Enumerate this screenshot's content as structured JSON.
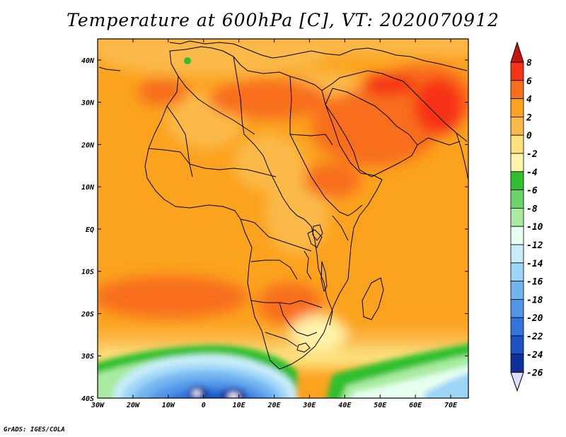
{
  "title": "Temperature at 600hPa [C], VT: 2020070912",
  "credit": "GrADS: IGES/COLA",
  "map": {
    "lon_range": [
      -30,
      75
    ],
    "lat_range": [
      -40,
      45
    ],
    "lon_ticks": [
      "30W",
      "20W",
      "10W",
      "0",
      "10E",
      "20E",
      "30E",
      "40E",
      "50E",
      "60E",
      "70E"
    ],
    "lon_tick_values": [
      -30,
      -20,
      -10,
      0,
      10,
      20,
      30,
      40,
      50,
      60,
      70
    ],
    "lat_ticks": [
      "40N",
      "30N",
      "20N",
      "10N",
      "EQ",
      "10S",
      "20S",
      "30S",
      "40S"
    ],
    "lat_tick_values": [
      40,
      30,
      20,
      10,
      0,
      -10,
      -20,
      -30,
      -40
    ]
  },
  "colorbar": {
    "labels": [
      "8",
      "6",
      "4",
      "2",
      "0",
      "-2",
      "-4",
      "-6",
      "-8",
      "-10",
      "-12",
      "-14",
      "-16",
      "-18",
      "-20",
      "-22",
      "-24",
      "-26"
    ],
    "colors": [
      "#f63219",
      "#f86e1c",
      "#fba21e",
      "#fbb94a",
      "#fde17e",
      "#fff3ab",
      "#2ec02e",
      "#6cd568",
      "#a8eba0",
      "#e6ffef",
      "#c8ecfa",
      "#9dd5f7",
      "#72b4f0",
      "#5296e8",
      "#3273dc",
      "#1b52c4",
      "#0e309a"
    ],
    "top_color": "#c81410",
    "bottom_color": "#dcdcff"
  }
}
